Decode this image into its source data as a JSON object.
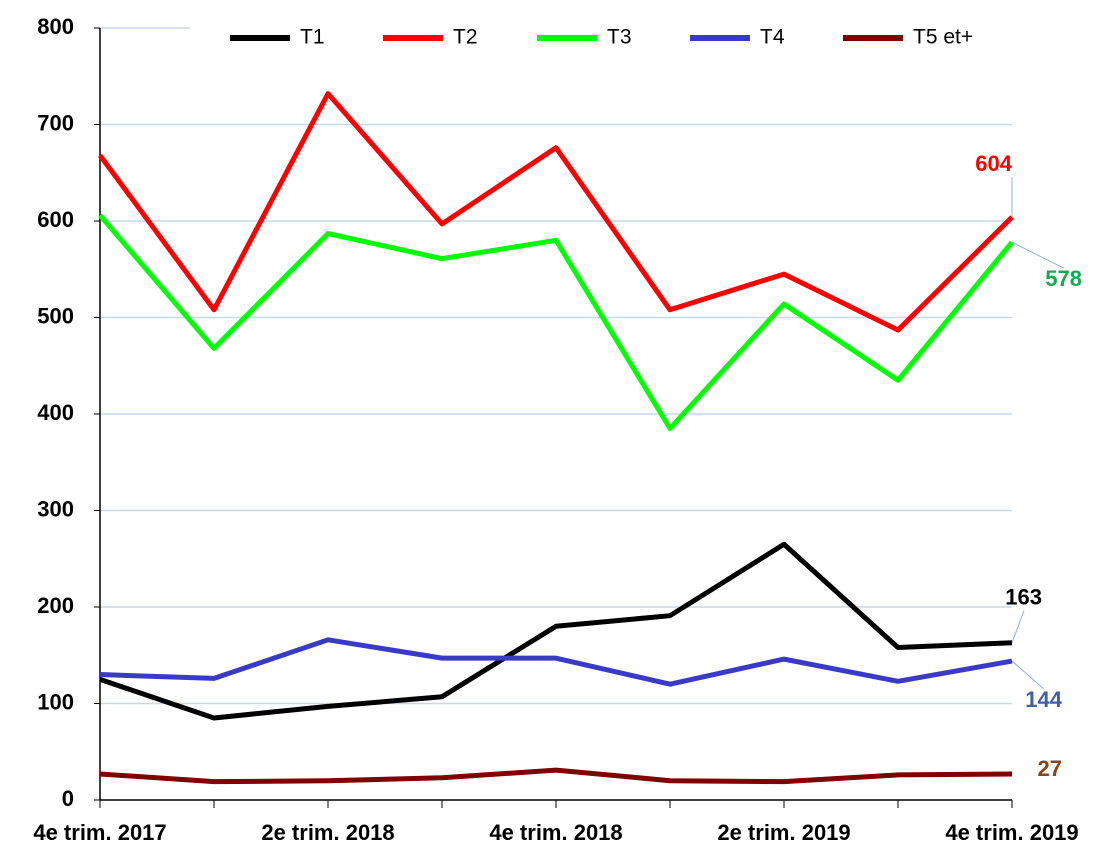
{
  "chart_data": {
    "type": "line",
    "categories": [
      "4e trim. 2017",
      null,
      "2e trim. 2018",
      null,
      "4e trim. 2018",
      null,
      "2e trim. 2019",
      null,
      "4e trim. 2019"
    ],
    "series": [
      {
        "name": "T1",
        "color": "#000000",
        "label_color": "#000000",
        "values": [
          125,
          85,
          97,
          107,
          180,
          191,
          265,
          158,
          163
        ]
      },
      {
        "name": "T2",
        "color": "#ff0000",
        "label_color": "#ff0000",
        "values": [
          668,
          508,
          732,
          597,
          676,
          508,
          545,
          487,
          604
        ]
      },
      {
        "name": "T3",
        "color": "#00ff00",
        "label_color": "#1aa84f",
        "values": [
          606,
          468,
          587,
          561,
          580,
          385,
          514,
          435,
          578
        ]
      },
      {
        "name": "T4",
        "color": "#3a3ac8",
        "label_color": "#3f5ea8",
        "values": [
          130,
          126,
          166,
          147,
          147,
          120,
          146,
          123,
          144
        ]
      },
      {
        "name": "T5 et+",
        "color": "#800000",
        "label_color": "#8b4513",
        "values": [
          27,
          19,
          20,
          23,
          31,
          20,
          19,
          26,
          27
        ]
      }
    ],
    "ylim": [
      0,
      800
    ],
    "yticks": [
      0,
      100,
      200,
      300,
      400,
      500,
      600,
      700,
      800
    ],
    "grid": true,
    "legend": "top"
  }
}
